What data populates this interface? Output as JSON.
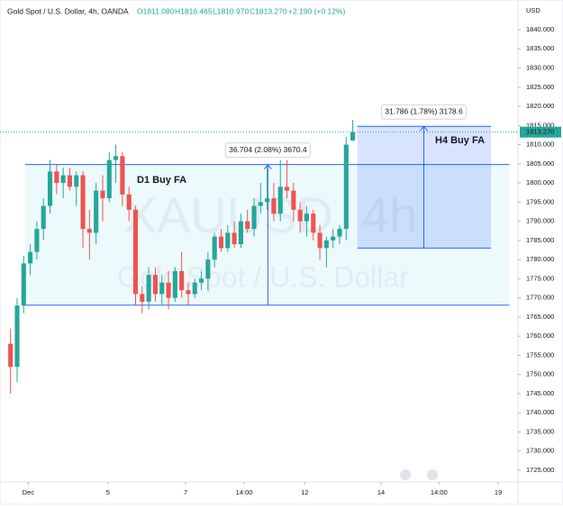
{
  "chart_data": {
    "type": "candlestick",
    "header": {
      "symbol": "Gold Spot / U.S. Dollar, 4h, OANDA",
      "open": "O1811.080",
      "high": "H1816.465",
      "low": "L1810.970",
      "close": "C1813.270",
      "change": "+2.190 (+0.12%)"
    },
    "currency": "USD",
    "watermark": {
      "symbol": "XAUUSD, 4h",
      "name": "Gold Spot / U.S. Dollar"
    },
    "up_color": "#26a69a",
    "down_color": "#ef5350",
    "open": [
      1758,
      1752,
      1768,
      1779,
      1782,
      1788,
      1794,
      1803,
      1800,
      1802,
      1799,
      1802,
      1788,
      1787,
      1798,
      1796,
      1806,
      1807,
      1797,
      1793,
      1771,
      1769,
      1776,
      1771,
      1774,
      1770,
      1777,
      1772,
      1771,
      1774,
      1775,
      1780,
      1786,
      1783,
      1787,
      1784,
      1790,
      1788,
      1794,
      1795,
      1796,
      1792,
      1799,
      1798,
      1793,
      1790,
      1792,
      1787,
      1783,
      1785,
      1786,
      1788,
      1811.08
    ],
    "high": [
      1762,
      1770,
      1781,
      1784,
      1790,
      1796,
      1806,
      1805,
      1804,
      1804,
      1803,
      1803,
      1793,
      1800,
      1802,
      1808,
      1810,
      1808,
      1799,
      1794,
      1773,
      1778,
      1778,
      1776,
      1777,
      1778,
      1782,
      1774,
      1775,
      1777,
      1782,
      1787,
      1788,
      1789,
      1790,
      1792,
      1793,
      1796,
      1800,
      1805,
      1800,
      1806,
      1806,
      1800,
      1795,
      1794,
      1793,
      1789,
      1786,
      1788,
      1789,
      1812,
      1816.465
    ],
    "low": [
      1745,
      1748,
      1766,
      1776,
      1780,
      1785,
      1792,
      1797,
      1796,
      1798,
      1794,
      1783,
      1780,
      1784,
      1790,
      1795,
      1800,
      1794,
      1790,
      1768,
      1766,
      1767,
      1769,
      1768,
      1767,
      1769,
      1770,
      1768,
      1770,
      1772,
      1772,
      1778,
      1782,
      1782,
      1783,
      1783,
      1787,
      1786,
      1792,
      1793,
      1790,
      1790,
      1796,
      1790,
      1787,
      1786,
      1785,
      1780,
      1778,
      1783,
      1784,
      1785,
      1810.97
    ],
    "close": [
      1752,
      1768,
      1779,
      1782,
      1788,
      1794,
      1803,
      1800,
      1802,
      1799,
      1802,
      1788,
      1787,
      1798,
      1796,
      1806,
      1807,
      1797,
      1793,
      1771,
      1769,
      1776,
      1771,
      1774,
      1770,
      1777,
      1772,
      1771,
      1774,
      1775,
      1780,
      1786,
      1783,
      1787,
      1784,
      1790,
      1788,
      1794,
      1795,
      1796,
      1792,
      1799,
      1798,
      1793,
      1790,
      1792,
      1787,
      1783,
      1785,
      1786,
      1788,
      1810,
      1813.27
    ],
    "xlim": [
      -1.6,
      77.1
    ],
    "xticks": [
      {
        "value": 2.7,
        "label": "Dec"
      },
      {
        "value": 14.8,
        "label": "5"
      },
      {
        "value": 26.6,
        "label": "7"
      },
      {
        "value": 35.5,
        "label": "14:00"
      },
      {
        "value": 44.7,
        "label": "12"
      },
      {
        "value": 56.3,
        "label": "14"
      },
      {
        "value": 65.1,
        "label": "14:00"
      },
      {
        "value": 74.1,
        "label": "19"
      }
    ],
    "ylim": [
      1722.2,
      1843.2
    ],
    "yticks": [
      {
        "value": 1725,
        "label": "1725.000"
      },
      {
        "value": 1730,
        "label": "1730.000"
      },
      {
        "value": 1735,
        "label": "1735.000"
      },
      {
        "value": 1740,
        "label": "1740.000"
      },
      {
        "value": 1745,
        "label": "1745.000"
      },
      {
        "value": 1750,
        "label": "1750.000"
      },
      {
        "value": 1755,
        "label": "1755.000"
      },
      {
        "value": 1760,
        "label": "1760.000"
      },
      {
        "value": 1765,
        "label": "1765.000"
      },
      {
        "value": 1770,
        "label": "1770.000"
      },
      {
        "value": 1775,
        "label": "1775.000"
      },
      {
        "value": 1780,
        "label": "1780.000"
      },
      {
        "value": 1785,
        "label": "1785.000"
      },
      {
        "value": 1790,
        "label": "1790.000"
      },
      {
        "value": 1795,
        "label": "1795.000"
      },
      {
        "value": 1800,
        "label": "1800.000"
      },
      {
        "value": 1805,
        "label": "1805.000"
      },
      {
        "value": 1810,
        "label": "1810.000"
      },
      {
        "value": 1815,
        "label": "1815.000"
      },
      {
        "value": 1820,
        "label": "1820.000"
      },
      {
        "value": 1825,
        "label": "1825.000"
      },
      {
        "value": 1830,
        "label": "1830.000"
      },
      {
        "value": 1835,
        "label": "1835.000"
      },
      {
        "value": 1840,
        "label": "1840.000"
      }
    ],
    "current_price": {
      "value": 1813.27,
      "label": "1813.270"
    },
    "zones": [
      {
        "label": "D1 Buy FA",
        "top": 1804.8,
        "bottom": 1768.1,
        "measure": "36.704 (2.08%) 3670.4"
      },
      {
        "label": "H4 Buy FA",
        "top": 1814.786,
        "bottom": 1783.0,
        "measure": "31.786 (1.78%) 3178.6"
      }
    ]
  }
}
